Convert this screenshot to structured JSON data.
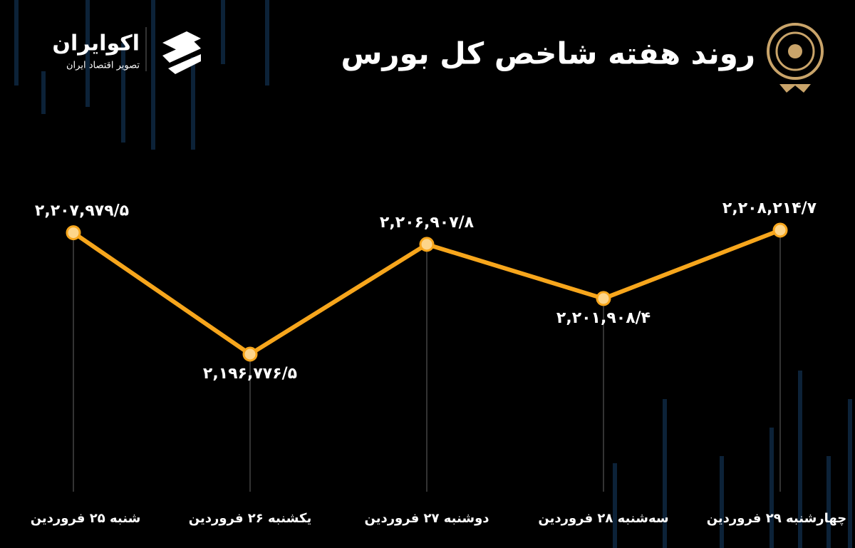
{
  "chart_data": {
    "type": "line",
    "title": "روند هفته شاخص کل بورس",
    "brand": {
      "name": "اکوایران",
      "tagline": "تصویر اقتصاد ایران"
    },
    "categories": [
      "شنبه ۲۵ فروردین",
      "یکشنبه ۲۶ فروردین",
      "دوشنبه ۲۷ فروردین",
      "سه‌شنبه ۲۸ فروردین",
      "چهارشنبه ۲۹ فروردین"
    ],
    "values": [
      2207979.5,
      2196776.5,
      2206907.8,
      2201908.4,
      2208214.7
    ],
    "value_labels": [
      "۲,۲۰۷,۹۷۹/۵",
      "۲,۱۹۶,۷۷۶/۵",
      "۲,۲۰۶,۹۰۷/۸",
      "۲,۲۰۱,۹۰۸/۴",
      "۲,۲۰۸,۲۱۴/۷"
    ],
    "color": "#f7a61c"
  }
}
